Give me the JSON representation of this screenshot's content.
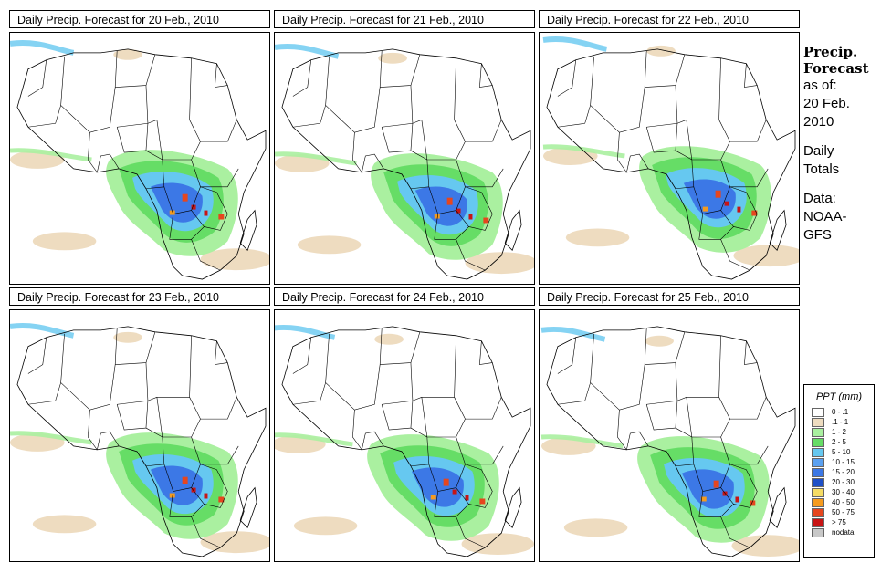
{
  "panels": [
    {
      "title": "Daily Precip. Forecast for  20 Feb., 2010"
    },
    {
      "title": "Daily Precip. Forecast for  21 Feb., 2010"
    },
    {
      "title": "Daily Precip. Forecast for  22 Feb., 2010"
    },
    {
      "title": "Daily Precip. Forecast for  23 Feb., 2010"
    },
    {
      "title": "Daily Precip. Forecast for  24 Feb., 2010"
    },
    {
      "title": "Daily Precip. Forecast for  25 Feb., 2010"
    }
  ],
  "side": {
    "line1": "Precip.",
    "line2": "Forecast",
    "line3": "as of:",
    "line4": "20 Feb.",
    "line5": "2010",
    "line6": "Daily",
    "line7": "Totals",
    "line8": "Data:",
    "line9": "NOAA-",
    "line10": "GFS"
  },
  "legend": {
    "title": "PPT (mm)",
    "items": [
      {
        "label": "0 - .1",
        "color": "#ffffff"
      },
      {
        "label": ".1 - 1",
        "color": "#eedcc0"
      },
      {
        "label": "1 - 2",
        "color": "#aaf0a0"
      },
      {
        "label": "2 - 5",
        "color": "#66dd66"
      },
      {
        "label": "5 - 10",
        "color": "#66c8f0"
      },
      {
        "label": "10 - 15",
        "color": "#5aa0f0"
      },
      {
        "label": "15 - 20",
        "color": "#3c78e6"
      },
      {
        "label": "20 - 30",
        "color": "#1e50c8"
      },
      {
        "label": "30 - 40",
        "color": "#f5dc64"
      },
      {
        "label": "40 - 50",
        "color": "#f59b1e"
      },
      {
        "label": "50 - 75",
        "color": "#e6461e"
      },
      {
        "label": "> 75",
        "color": "#c81414"
      },
      {
        "label": "nodata",
        "color": "#c8c8c8"
      }
    ]
  }
}
